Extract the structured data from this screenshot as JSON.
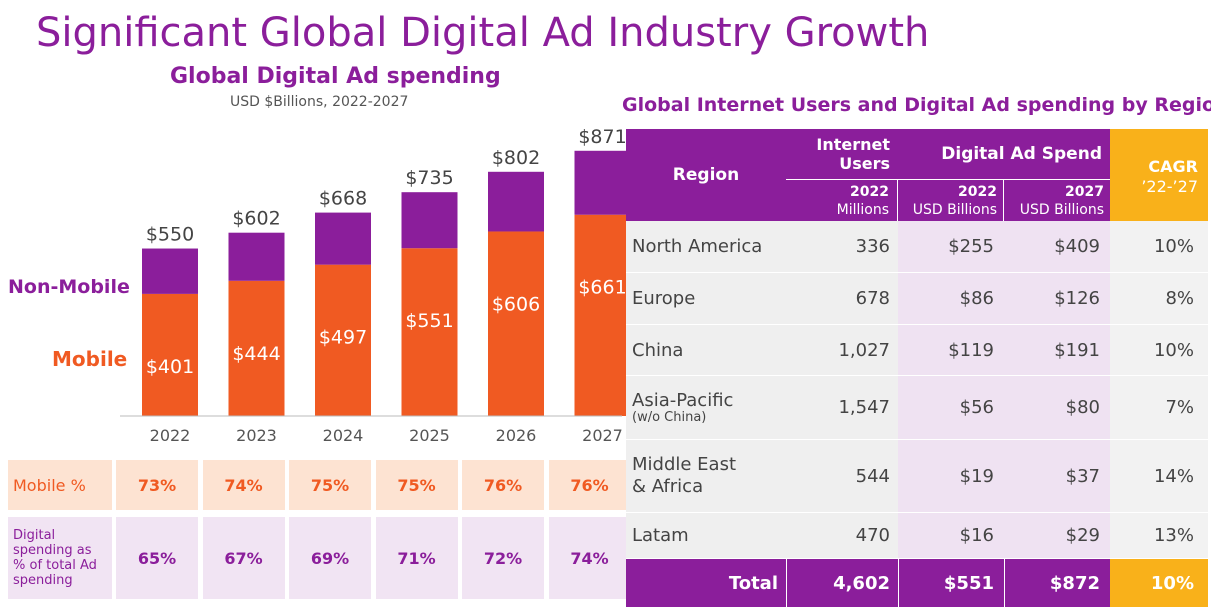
{
  "title": "Significant Global Digital Ad Industry Growth",
  "chart_data": {
    "type": "bar",
    "title": "Global Digital Ad spending",
    "subtitle": "USD $Billions, 2022-2027",
    "categories": [
      "2022",
      "2023",
      "2024",
      "2025",
      "2026",
      "2027"
    ],
    "series": [
      {
        "name": "Mobile",
        "values": [
          401,
          444,
          497,
          551,
          606,
          661
        ],
        "labels": [
          "$401",
          "$444",
          "$497",
          "$551",
          "$606",
          "$661"
        ],
        "color": "#f05a22"
      },
      {
        "name": "Non-Mobile",
        "values": [
          149,
          158,
          171,
          184,
          196,
          210
        ],
        "color": "#8b1e9b"
      }
    ],
    "totals": [
      550,
      602,
      668,
      735,
      802,
      871
    ],
    "total_labels": [
      "$550",
      "$602",
      "$668",
      "$735",
      "$802",
      "$871"
    ],
    "ylim": [
      0,
      900
    ],
    "stacked": true,
    "legend": [
      "Non-Mobile",
      "Mobile"
    ]
  },
  "stats": {
    "mobile_label": "Mobile %",
    "mobile_values": [
      "73%",
      "74%",
      "75%",
      "75%",
      "76%",
      "76%"
    ],
    "digital_label_lines": [
      "Digital",
      "spending as",
      "% of total Ad",
      "spending"
    ],
    "digital_values": [
      "65%",
      "67%",
      "69%",
      "71%",
      "72%",
      "74%"
    ]
  },
  "table": {
    "title": "Global Internet Users and Digital Ad spending by Region",
    "headers": {
      "region": "Region",
      "users": "Internet Users",
      "users_line1": "Internet",
      "users_line2": "Users",
      "spend": "Digital Ad Spend",
      "cagr": "CAGR",
      "cagr_period": "’22-’27",
      "users_year": "2022",
      "users_unit": "Millions",
      "spend_2022": "2022",
      "spend_2022_unit": "USD Billions",
      "spend_2027": "2027",
      "spend_2027_unit": "USD Billions"
    },
    "rows": [
      {
        "region": "North America",
        "note": "",
        "users": "336",
        "spend_2022": "$255",
        "spend_2027": "$409",
        "cagr": "10%"
      },
      {
        "region": "Europe",
        "note": "",
        "users": "678",
        "spend_2022": "$86",
        "spend_2027": "$126",
        "cagr": "8%"
      },
      {
        "region": "China",
        "note": "",
        "users": "1,027",
        "spend_2022": "$119",
        "spend_2027": "$191",
        "cagr": "10%"
      },
      {
        "region": "Asia-Pacific",
        "note": "(w/o China)",
        "users": "1,547",
        "spend_2022": "$56",
        "spend_2027": "$80",
        "cagr": "7%"
      },
      {
        "region": "Middle East",
        "region_line2": "& Africa",
        "note": "",
        "users": "544",
        "spend_2022": "$19",
        "spend_2027": "$37",
        "cagr": "14%"
      },
      {
        "region": "Latam",
        "note": "",
        "users": "470",
        "spend_2022": "$16",
        "spend_2027": "$29",
        "cagr": "13%"
      }
    ],
    "total": {
      "label": "Total",
      "users": "4,602",
      "spend_2022": "$551",
      "spend_2027": "$872",
      "cagr": "10%"
    }
  },
  "colors": {
    "purple": "#8b1e9b",
    "orange": "#f05a22",
    "gold": "#f9b11a"
  }
}
